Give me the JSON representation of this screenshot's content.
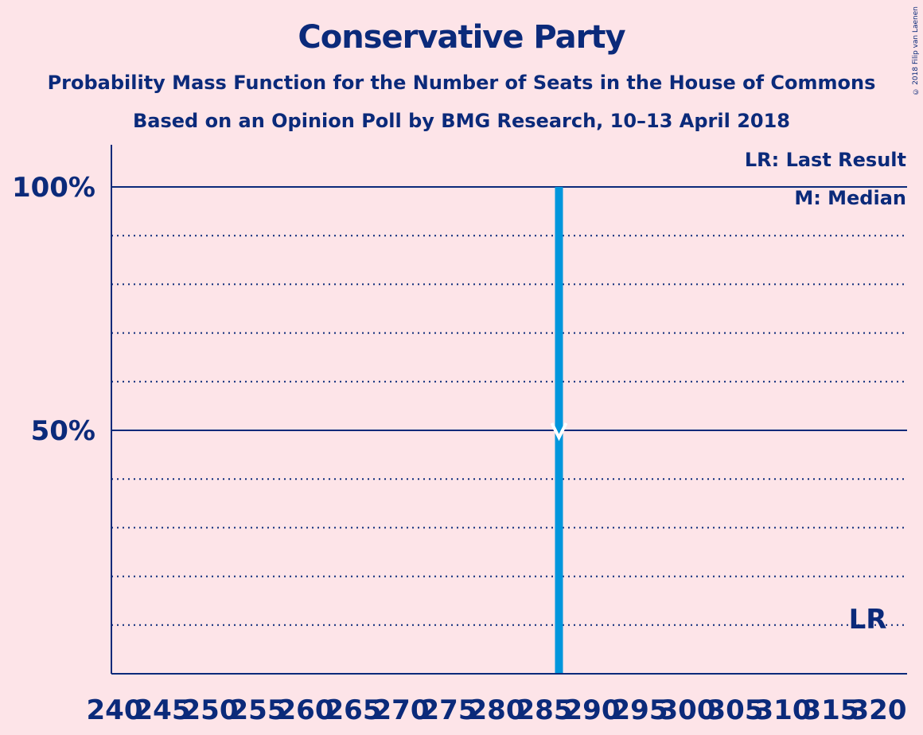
{
  "title": "Conservative Party",
  "subtitle1": "Probability Mass Function for the Number of Seats in the House of Commons",
  "subtitle2": "Based on an Opinion Poll by BMG Research, 10–13 April 2018",
  "copyright": "© 2018 Filip van Laenen",
  "legend": {
    "lr": "LR: Last Result",
    "median": "M: Median"
  },
  "colors": {
    "background": "#fde4e8",
    "text": "#0b2a7a",
    "bar": "#0096dc"
  },
  "chart_data": {
    "type": "bar",
    "x": [
      240,
      245,
      250,
      255,
      260,
      265,
      270,
      275,
      280,
      285,
      290,
      295,
      300,
      305,
      310,
      315,
      320
    ],
    "x_tick_labels": [
      "240",
      "245",
      "250",
      "255",
      "260",
      "265",
      "270",
      "275",
      "280",
      "285",
      "290",
      "295",
      "300",
      "305",
      "310",
      "315",
      "320"
    ],
    "xlim": [
      240,
      320
    ],
    "ylim": [
      0,
      100
    ],
    "y_tick_labels": [
      {
        "value": 50,
        "label": "50%"
      },
      {
        "value": 100,
        "label": "100%"
      }
    ],
    "y_gridlines": [
      10,
      20,
      30,
      40,
      60,
      70,
      80,
      90
    ],
    "series": [
      {
        "values": [
          {
            "x": 285,
            "y": 100
          }
        ]
      }
    ],
    "median": 285,
    "last_result": 317,
    "last_result_label": "LR"
  }
}
